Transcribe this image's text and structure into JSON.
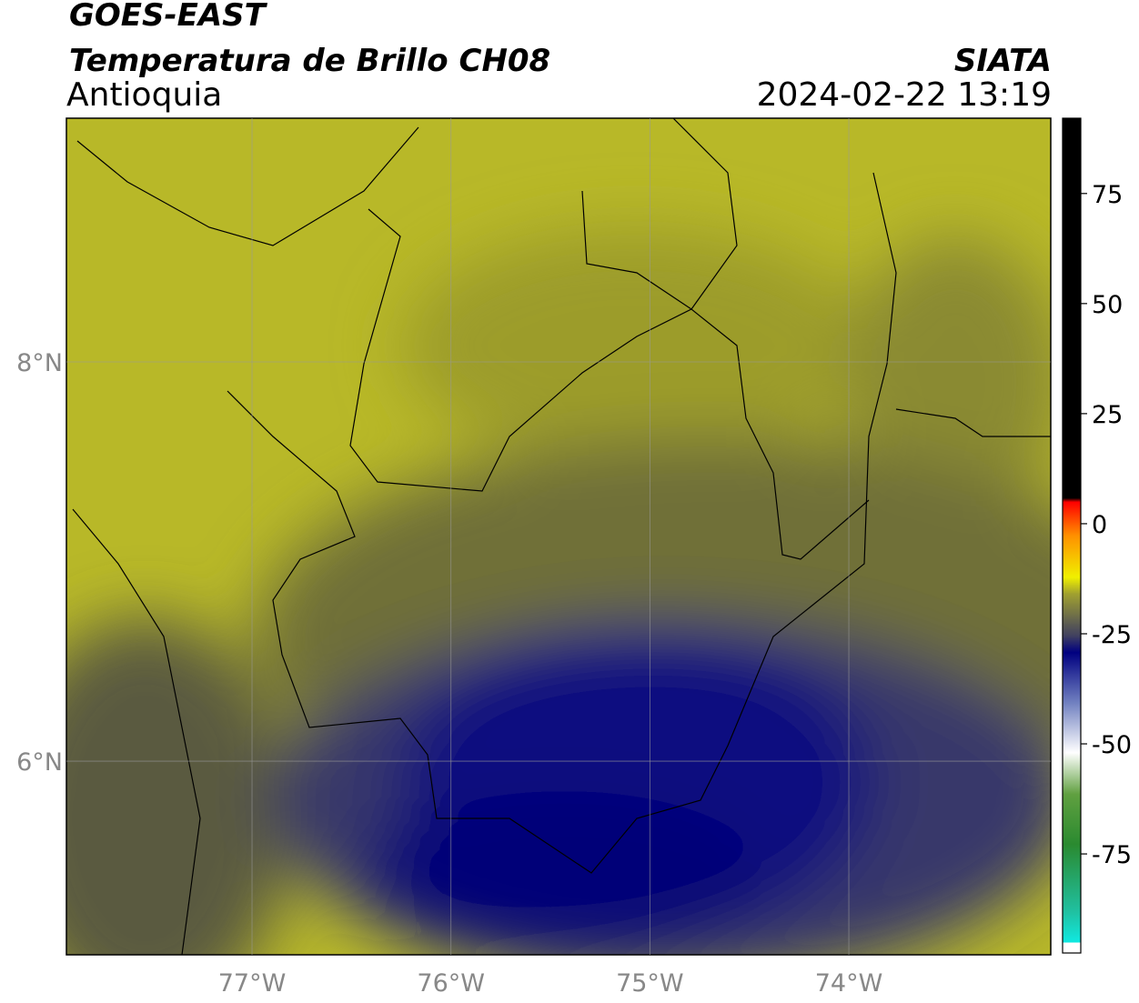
{
  "header": {
    "satellite": "GOES-EAST",
    "product": "Temperatura de Brillo CH08",
    "region": "Antioquia",
    "source": "SIATA",
    "datetime": "2024-02-22 13:19"
  },
  "map": {
    "lonlim": [
      -77.933,
      -72.985
    ],
    "latlim": [
      5.03,
      9.221
    ],
    "xticks": [
      {
        "value": -77,
        "label": "77°W"
      },
      {
        "value": -76,
        "label": "76°W"
      },
      {
        "value": -75,
        "label": "75°W"
      },
      {
        "value": -74,
        "label": "74°W"
      }
    ],
    "yticks": [
      {
        "value": 8,
        "label": "8°N"
      },
      {
        "value": 6,
        "label": "6°N"
      }
    ],
    "grid": true
  },
  "colorbar": {
    "lim": [
      -97.5,
      92.1
    ],
    "ticks": [
      -75,
      -50,
      -25,
      0,
      25,
      50,
      75
    ]
  }
}
